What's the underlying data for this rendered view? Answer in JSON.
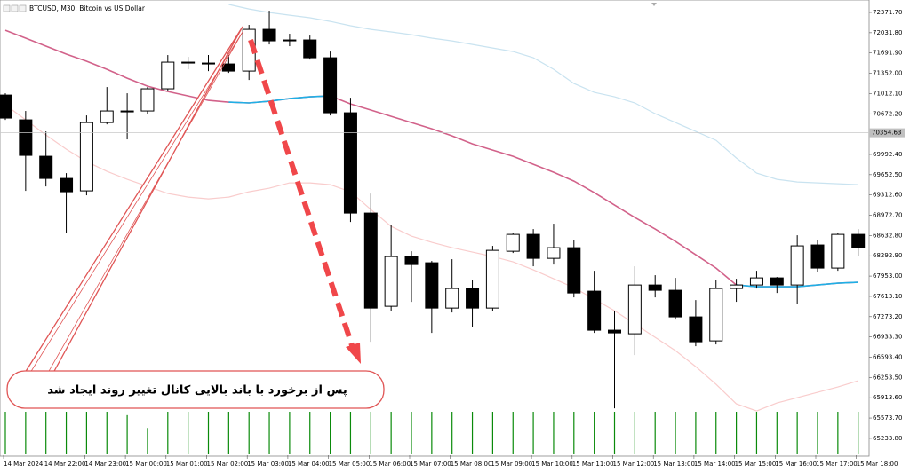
{
  "chart_data": {
    "type": "candlestick",
    "title": "BTCUSD, M30:  Bitcoin vs US Dollar",
    "annotation": "پس از برخورد با باند بالایی کانال تغییر روند ایجاد شد",
    "categories": [
      "14 Mar 2024",
      null,
      "14 Mar 22:00",
      null,
      "14 Mar 23:00",
      null,
      "15 Mar 00:00",
      null,
      "15 Mar 01:00",
      null,
      "15 Mar 02:00",
      null,
      "15 Mar 03:00",
      null,
      "15 Mar 04:00",
      null,
      "15 Mar 05:00",
      null,
      "15 Mar 06:00",
      null,
      "15 Mar 07:00",
      null,
      "15 Mar 08:00",
      null,
      "15 Mar 09:00",
      null,
      "15 Mar 10:00",
      null,
      "15 Mar 11:00",
      null,
      "15 Mar 12:00",
      null,
      "15 Mar 13:00",
      null,
      "15 Mar 14:00",
      null,
      "15 Mar 15:00",
      null,
      "15 Mar 16:00",
      null,
      "15 Mar 17:00",
      null,
      "15 Mar 18:00"
    ],
    "open": [
      70987,
      70571,
      69961,
      69589,
      69381,
      70526,
      70705,
      70720,
      71092,
      71523,
      71523,
      71508,
      71389,
      72088,
      71910,
      71910,
      71612,
      70690,
      69009,
      67447,
      68280,
      68176,
      67417,
      67745,
      67417,
      68369,
      68652,
      68250,
      68429,
      67700,
      67046,
      66986,
      67804,
      67715,
      67269,
      66867,
      67745,
      67804,
      67923,
      67804,
      68474,
      68087,
      68652
    ],
    "high": [
      71017,
      70720,
      70378,
      69678,
      70645,
      71121,
      71017,
      71121,
      71657,
      71627,
      71657,
      71657,
      72163,
      72401,
      72014,
      71984,
      71716,
      70943,
      69336,
      68816,
      68369,
      68206,
      68236,
      67893,
      68459,
      68682,
      68741,
      68831,
      68563,
      68042,
      67373,
      68117,
      67968,
      67923,
      67551,
      67893,
      67908,
      68042,
      67938,
      68637,
      68563,
      68682,
      68741
    ],
    "low": [
      70571,
      69381,
      69455,
      68682,
      69307,
      70496,
      70244,
      70675,
      71062,
      71419,
      71389,
      71359,
      71240,
      71835,
      71806,
      71582,
      70645,
      68860,
      66852,
      67373,
      67522,
      67001,
      67343,
      67105,
      67373,
      68340,
      68117,
      68146,
      67596,
      67001,
      65737,
      66629,
      67596,
      67224,
      66778,
      66808,
      67522,
      67745,
      67670,
      67492,
      68027,
      68042,
      68295
    ],
    "close": [
      70601,
      69976,
      69589,
      69366,
      70526,
      70720,
      70720,
      71092,
      71538,
      71538,
      71508,
      71389,
      72088,
      71895,
      71895,
      71612,
      70690,
      69009,
      67417,
      68280,
      68146,
      67417,
      67745,
      67417,
      68384,
      68652,
      68250,
      68429,
      67670,
      67046,
      67001,
      67804,
      67715,
      67269,
      66852,
      67745,
      67804,
      67923,
      67804,
      68459,
      68087,
      68652,
      68429
    ],
    "up_color": "#ffffff",
    "down_color": "#000000",
    "overlays": [
      {
        "color": "#c9e3f0",
        "values": [
          null,
          null,
          null,
          null,
          null,
          null,
          null,
          null,
          null,
          null,
          null,
          72505,
          72430,
          72371,
          72326,
          72282,
          72222,
          72148,
          72088,
          72044,
          71999,
          71940,
          71895,
          71835,
          71776,
          71716,
          71612,
          71419,
          71181,
          71032,
          70958,
          70854,
          70675,
          70526,
          70378,
          70229,
          69932,
          69678,
          69574,
          69530,
          69515,
          69500,
          69485
        ]
      },
      {
        "color": "#f9cccc",
        "values": [
          70824,
          70571,
          70318,
          70080,
          69872,
          69708,
          69574,
          69455,
          69336,
          69277,
          69247,
          69277,
          69366,
          69426,
          69515,
          69515,
          69485,
          69366,
          69069,
          68786,
          68622,
          68518,
          68429,
          68355,
          68280,
          68191,
          68057,
          67908,
          67760,
          67566,
          67373,
          67150,
          66927,
          66704,
          66436,
          66138,
          65811,
          65692,
          65826,
          65915,
          66004,
          66094,
          66198
        ]
      },
      {
        "color": "#d2628a",
        "values": [
          72073,
          71940,
          71806,
          71672,
          71553,
          71419,
          71270,
          71136,
          71047,
          70972,
          70898,
          70868,
          70854,
          70883,
          70928,
          70958,
          70972,
          70839,
          70735,
          70630,
          70526,
          70422,
          70303,
          70169,
          70065,
          69961,
          69827,
          69693,
          69545,
          69351,
          69143,
          68935,
          68741,
          68533,
          68310,
          68087,
          67804,
          67775,
          67775,
          67775,
          67804,
          67834,
          67849
        ]
      },
      {
        "color": "#1fb0e6",
        "values": [
          null,
          null,
          null,
          null,
          null,
          null,
          null,
          null,
          null,
          null,
          null,
          70868,
          70854,
          70883,
          70928,
          70958,
          70972,
          null,
          null,
          null,
          null,
          null,
          null,
          null,
          null,
          null,
          null,
          null,
          null,
          null,
          null,
          null,
          null,
          null,
          null,
          null,
          67804,
          67775,
          67775,
          67775,
          67804,
          67834,
          67849
        ]
      }
    ],
    "volume": {
      "color": "#0a8a0a",
      "values": [
        100,
        100,
        100,
        100,
        100,
        100,
        92,
        62,
        100,
        100,
        100,
        100,
        100,
        100,
        100,
        100,
        100,
        100,
        100,
        100,
        100,
        100,
        100,
        100,
        100,
        100,
        100,
        100,
        100,
        100,
        100,
        100,
        100,
        100,
        100,
        100,
        100,
        100,
        100,
        100,
        100,
        100,
        100
      ]
    },
    "bid": 70354.63,
    "ylim": [
      64950,
      72580
    ],
    "yticks": [
      {
        "value": 72371.7,
        "label": "72371.70"
      },
      {
        "value": 72031.8,
        "label": "72031.80"
      },
      {
        "value": 71691.9,
        "label": "71691.90"
      },
      {
        "value": 71352,
        "label": "71352.00"
      },
      {
        "value": 71012.1,
        "label": "71012.10"
      },
      {
        "value": 70672.2,
        "label": "70672.20"
      },
      {
        "value": 69992.4,
        "label": "69992.40"
      },
      {
        "value": 69652.5,
        "label": "69652.50"
      },
      {
        "value": 69312.6,
        "label": "69312.60"
      },
      {
        "value": 68972.7,
        "label": "68972.70"
      },
      {
        "value": 68632.8,
        "label": "68632.80"
      },
      {
        "value": 68292.9,
        "label": "68292.90"
      },
      {
        "value": 67953,
        "label": "67953.00"
      },
      {
        "value": 67613.1,
        "label": "67613.10"
      },
      {
        "value": 67273.2,
        "label": "67273.20"
      },
      {
        "value": 66933.3,
        "label": "66933.30"
      },
      {
        "value": 66593.4,
        "label": "66593.40"
      },
      {
        "value": 66253.5,
        "label": "66253.50"
      },
      {
        "value": 65913.6,
        "label": "65913.60"
      },
      {
        "value": 65573.7,
        "label": "65573.70"
      },
      {
        "value": 65233.8,
        "label": "65233.80"
      }
    ]
  }
}
